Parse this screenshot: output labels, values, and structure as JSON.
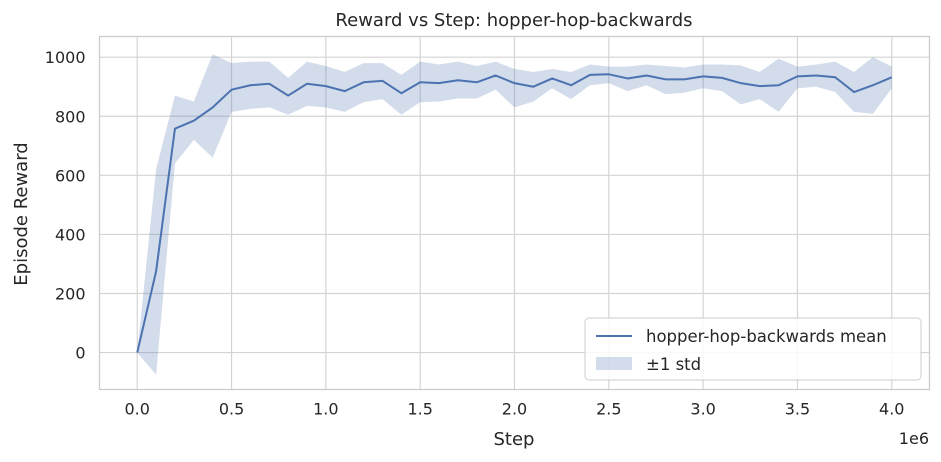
{
  "chart_data": {
    "type": "line",
    "title": "Reward vs Step: hopper-hop-backwards",
    "xlabel": "Step",
    "ylabel": "Episode Reward",
    "x_offset_label": "1e6",
    "xlim": [
      -0.2,
      4.2
    ],
    "ylim": [
      -125,
      1070
    ],
    "x_ticks": [
      0.0,
      0.5,
      1.0,
      1.5,
      2.0,
      2.5,
      3.0,
      3.5,
      4.0
    ],
    "x_tick_labels": [
      "0.0",
      "0.5",
      "1.0",
      "1.5",
      "2.0",
      "2.5",
      "3.0",
      "3.5",
      "4.0"
    ],
    "y_ticks": [
      0,
      200,
      400,
      600,
      800,
      1000
    ],
    "y_tick_labels": [
      "0",
      "200",
      "400",
      "600",
      "800",
      "1000"
    ],
    "grid": true,
    "legend_position": "bottom-right",
    "colors": {
      "line": "#4c72b0",
      "band": "#4c72b0",
      "grid": "#d4d4d4",
      "frame": "#cccccc"
    },
    "series": [
      {
        "name": "hopper-hop-backwards mean",
        "x": [
          0.0,
          0.1,
          0.2,
          0.3,
          0.4,
          0.5,
          0.6,
          0.7,
          0.8,
          0.9,
          1.0,
          1.1,
          1.2,
          1.3,
          1.4,
          1.5,
          1.6,
          1.7,
          1.8,
          1.9,
          2.0,
          2.1,
          2.2,
          2.3,
          2.4,
          2.5,
          2.6,
          2.7,
          2.8,
          2.9,
          3.0,
          3.1,
          3.2,
          3.3,
          3.4,
          3.5,
          3.6,
          3.7,
          3.8,
          3.9,
          4.0
        ],
        "values": [
          0,
          275,
          758,
          785,
          830,
          890,
          905,
          910,
          870,
          910,
          902,
          885,
          915,
          920,
          878,
          915,
          912,
          922,
          915,
          938,
          912,
          900,
          928,
          905,
          940,
          942,
          928,
          938,
          925,
          925,
          935,
          930,
          912,
          902,
          905,
          935,
          938,
          932,
          882,
          905,
          932
        ],
        "upper": [
          0,
          620,
          870,
          850,
          1010,
          980,
          985,
          985,
          930,
          985,
          970,
          950,
          980,
          980,
          940,
          985,
          975,
          985,
          970,
          985,
          960,
          950,
          960,
          950,
          975,
          968,
          968,
          975,
          970,
          965,
          975,
          975,
          972,
          950,
          995,
          968,
          975,
          985,
          950,
          1000,
          968
        ],
        "lower": [
          0,
          -75,
          640,
          720,
          660,
          815,
          825,
          830,
          805,
          835,
          830,
          815,
          848,
          858,
          805,
          848,
          850,
          860,
          860,
          890,
          830,
          850,
          895,
          858,
          905,
          912,
          885,
          905,
          875,
          880,
          895,
          885,
          840,
          858,
          815,
          895,
          900,
          882,
          815,
          808,
          895
        ]
      }
    ],
    "band_label": "±1 std"
  }
}
